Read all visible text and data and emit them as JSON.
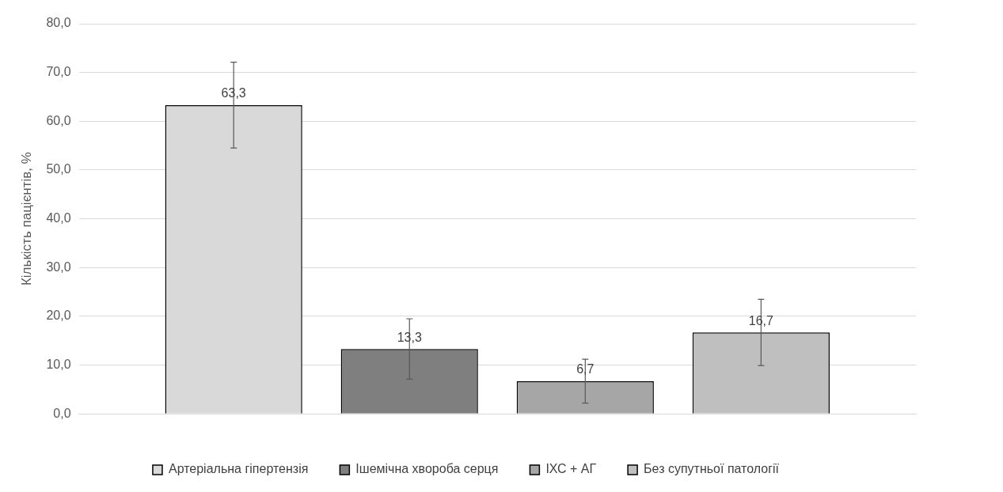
{
  "chart_data": {
    "type": "bar",
    "ylabel": "Кількість пацієнтів, %",
    "categories": [
      null
    ],
    "series": [
      {
        "name": "Артеріальна гіпертензія",
        "color": "#d9d9d9",
        "values": [
          63.3
        ],
        "errors": [
          8.8
        ],
        "value_labels": [
          "63,3"
        ]
      },
      {
        "name": "Ішемічна хвороба серця",
        "color": "#7f7f7f",
        "values": [
          13.3
        ],
        "errors": [
          6.2
        ],
        "value_labels": [
          "13,3"
        ]
      },
      {
        "name": "ІХС + АГ",
        "color": "#a6a6a6",
        "values": [
          6.7
        ],
        "errors": [
          4.5
        ],
        "value_labels": [
          "6,7"
        ]
      },
      {
        "name": "Без супутньої патології",
        "color": "#bfbfbf",
        "values": [
          16.7
        ],
        "errors": [
          6.8
        ],
        "value_labels": [
          "16,7"
        ]
      }
    ],
    "ylim": [
      0,
      80
    ],
    "yticks": [
      {
        "value": 0,
        "label": "0,0"
      },
      {
        "value": 10,
        "label": "10,0"
      },
      {
        "value": 20,
        "label": "20,0"
      },
      {
        "value": 30,
        "label": "30,0"
      },
      {
        "value": 40,
        "label": "40,0"
      },
      {
        "value": 50,
        "label": "50,0"
      },
      {
        "value": 60,
        "label": "60,0"
      },
      {
        "value": 70,
        "label": "70,0"
      },
      {
        "value": 80,
        "label": "80,0"
      }
    ],
    "grid": "y",
    "legend": "bottom"
  }
}
